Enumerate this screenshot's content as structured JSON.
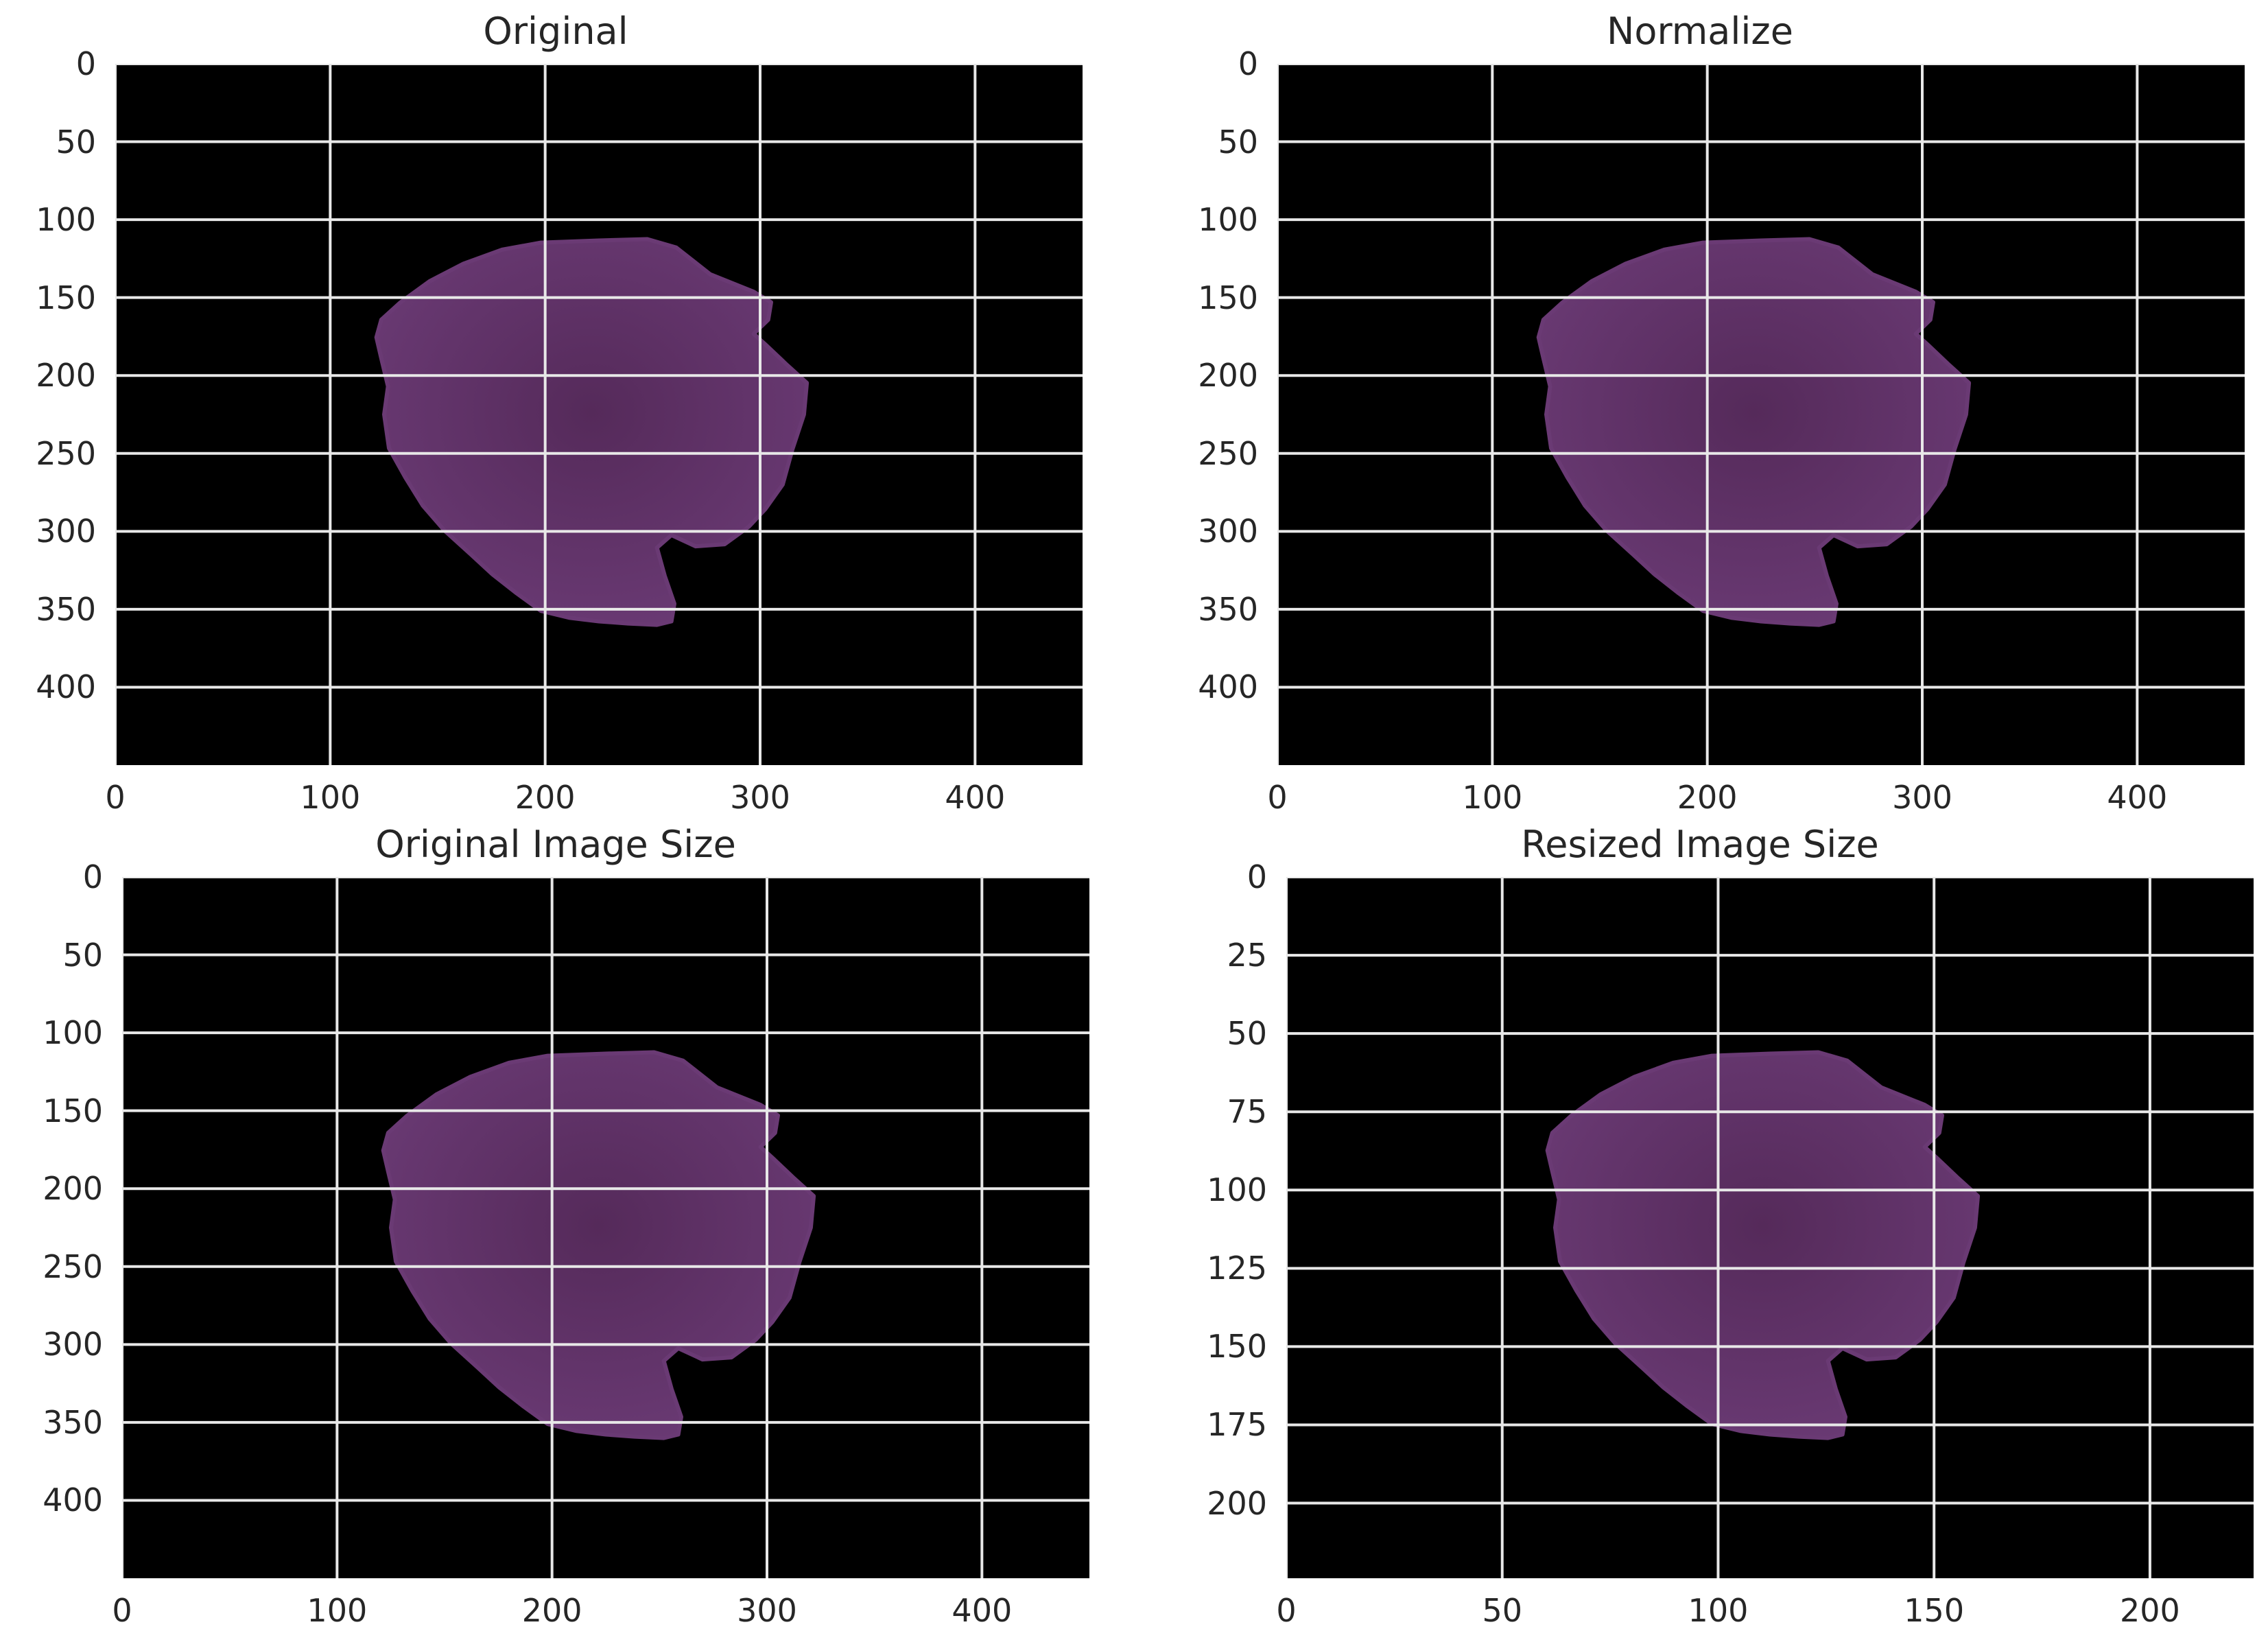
{
  "figure": {
    "background": "#ffffff",
    "axes_background": "#000000",
    "grid_color": "#e8e8e8",
    "cell_color": "#6a3a74",
    "cell_color_dark": "#552a5a",
    "panels": [
      {
        "title": "Original",
        "xlim": [
          0,
          450
        ],
        "ylim": [
          450,
          0
        ],
        "xticks": [
          "0",
          "100",
          "200",
          "300",
          "400"
        ],
        "yticks": [
          "0",
          "50",
          "100",
          "150",
          "200",
          "250",
          "300",
          "350",
          "400"
        ],
        "xtick_values": [
          0,
          100,
          200,
          300,
          400
        ],
        "ytick_values": [
          0,
          50,
          100,
          150,
          200,
          250,
          300,
          350,
          400
        ],
        "grid": true
      },
      {
        "title": "Normalize",
        "xlim": [
          0,
          450
        ],
        "ylim": [
          450,
          0
        ],
        "xticks": [
          "0",
          "100",
          "200",
          "300",
          "400"
        ],
        "yticks": [
          "0",
          "50",
          "100",
          "150",
          "200",
          "250",
          "300",
          "350",
          "400"
        ],
        "xtick_values": [
          0,
          100,
          200,
          300,
          400
        ],
        "ytick_values": [
          0,
          50,
          100,
          150,
          200,
          250,
          300,
          350,
          400
        ],
        "grid": true
      },
      {
        "title": "Original Image Size",
        "xlim": [
          0,
          450
        ],
        "ylim": [
          450,
          0
        ],
        "xticks": [
          "0",
          "100",
          "200",
          "300",
          "400"
        ],
        "yticks": [
          "0",
          "50",
          "100",
          "150",
          "200",
          "250",
          "300",
          "350",
          "400"
        ],
        "xtick_values": [
          0,
          100,
          200,
          300,
          400
        ],
        "ytick_values": [
          0,
          50,
          100,
          150,
          200,
          250,
          300,
          350,
          400
        ],
        "grid": true
      },
      {
        "title": "Resized Image Size",
        "xlim": [
          0,
          224
        ],
        "ylim": [
          224,
          0
        ],
        "xticks": [
          "0",
          "50",
          "100",
          "150",
          "200"
        ],
        "yticks": [
          "0",
          "25",
          "50",
          "75",
          "100",
          "125",
          "150",
          "175",
          "200"
        ],
        "xtick_values": [
          0,
          50,
          100,
          150,
          200
        ],
        "ytick_values": [
          0,
          25,
          50,
          75,
          100,
          125,
          150,
          175,
          200
        ],
        "grid": true
      }
    ]
  }
}
